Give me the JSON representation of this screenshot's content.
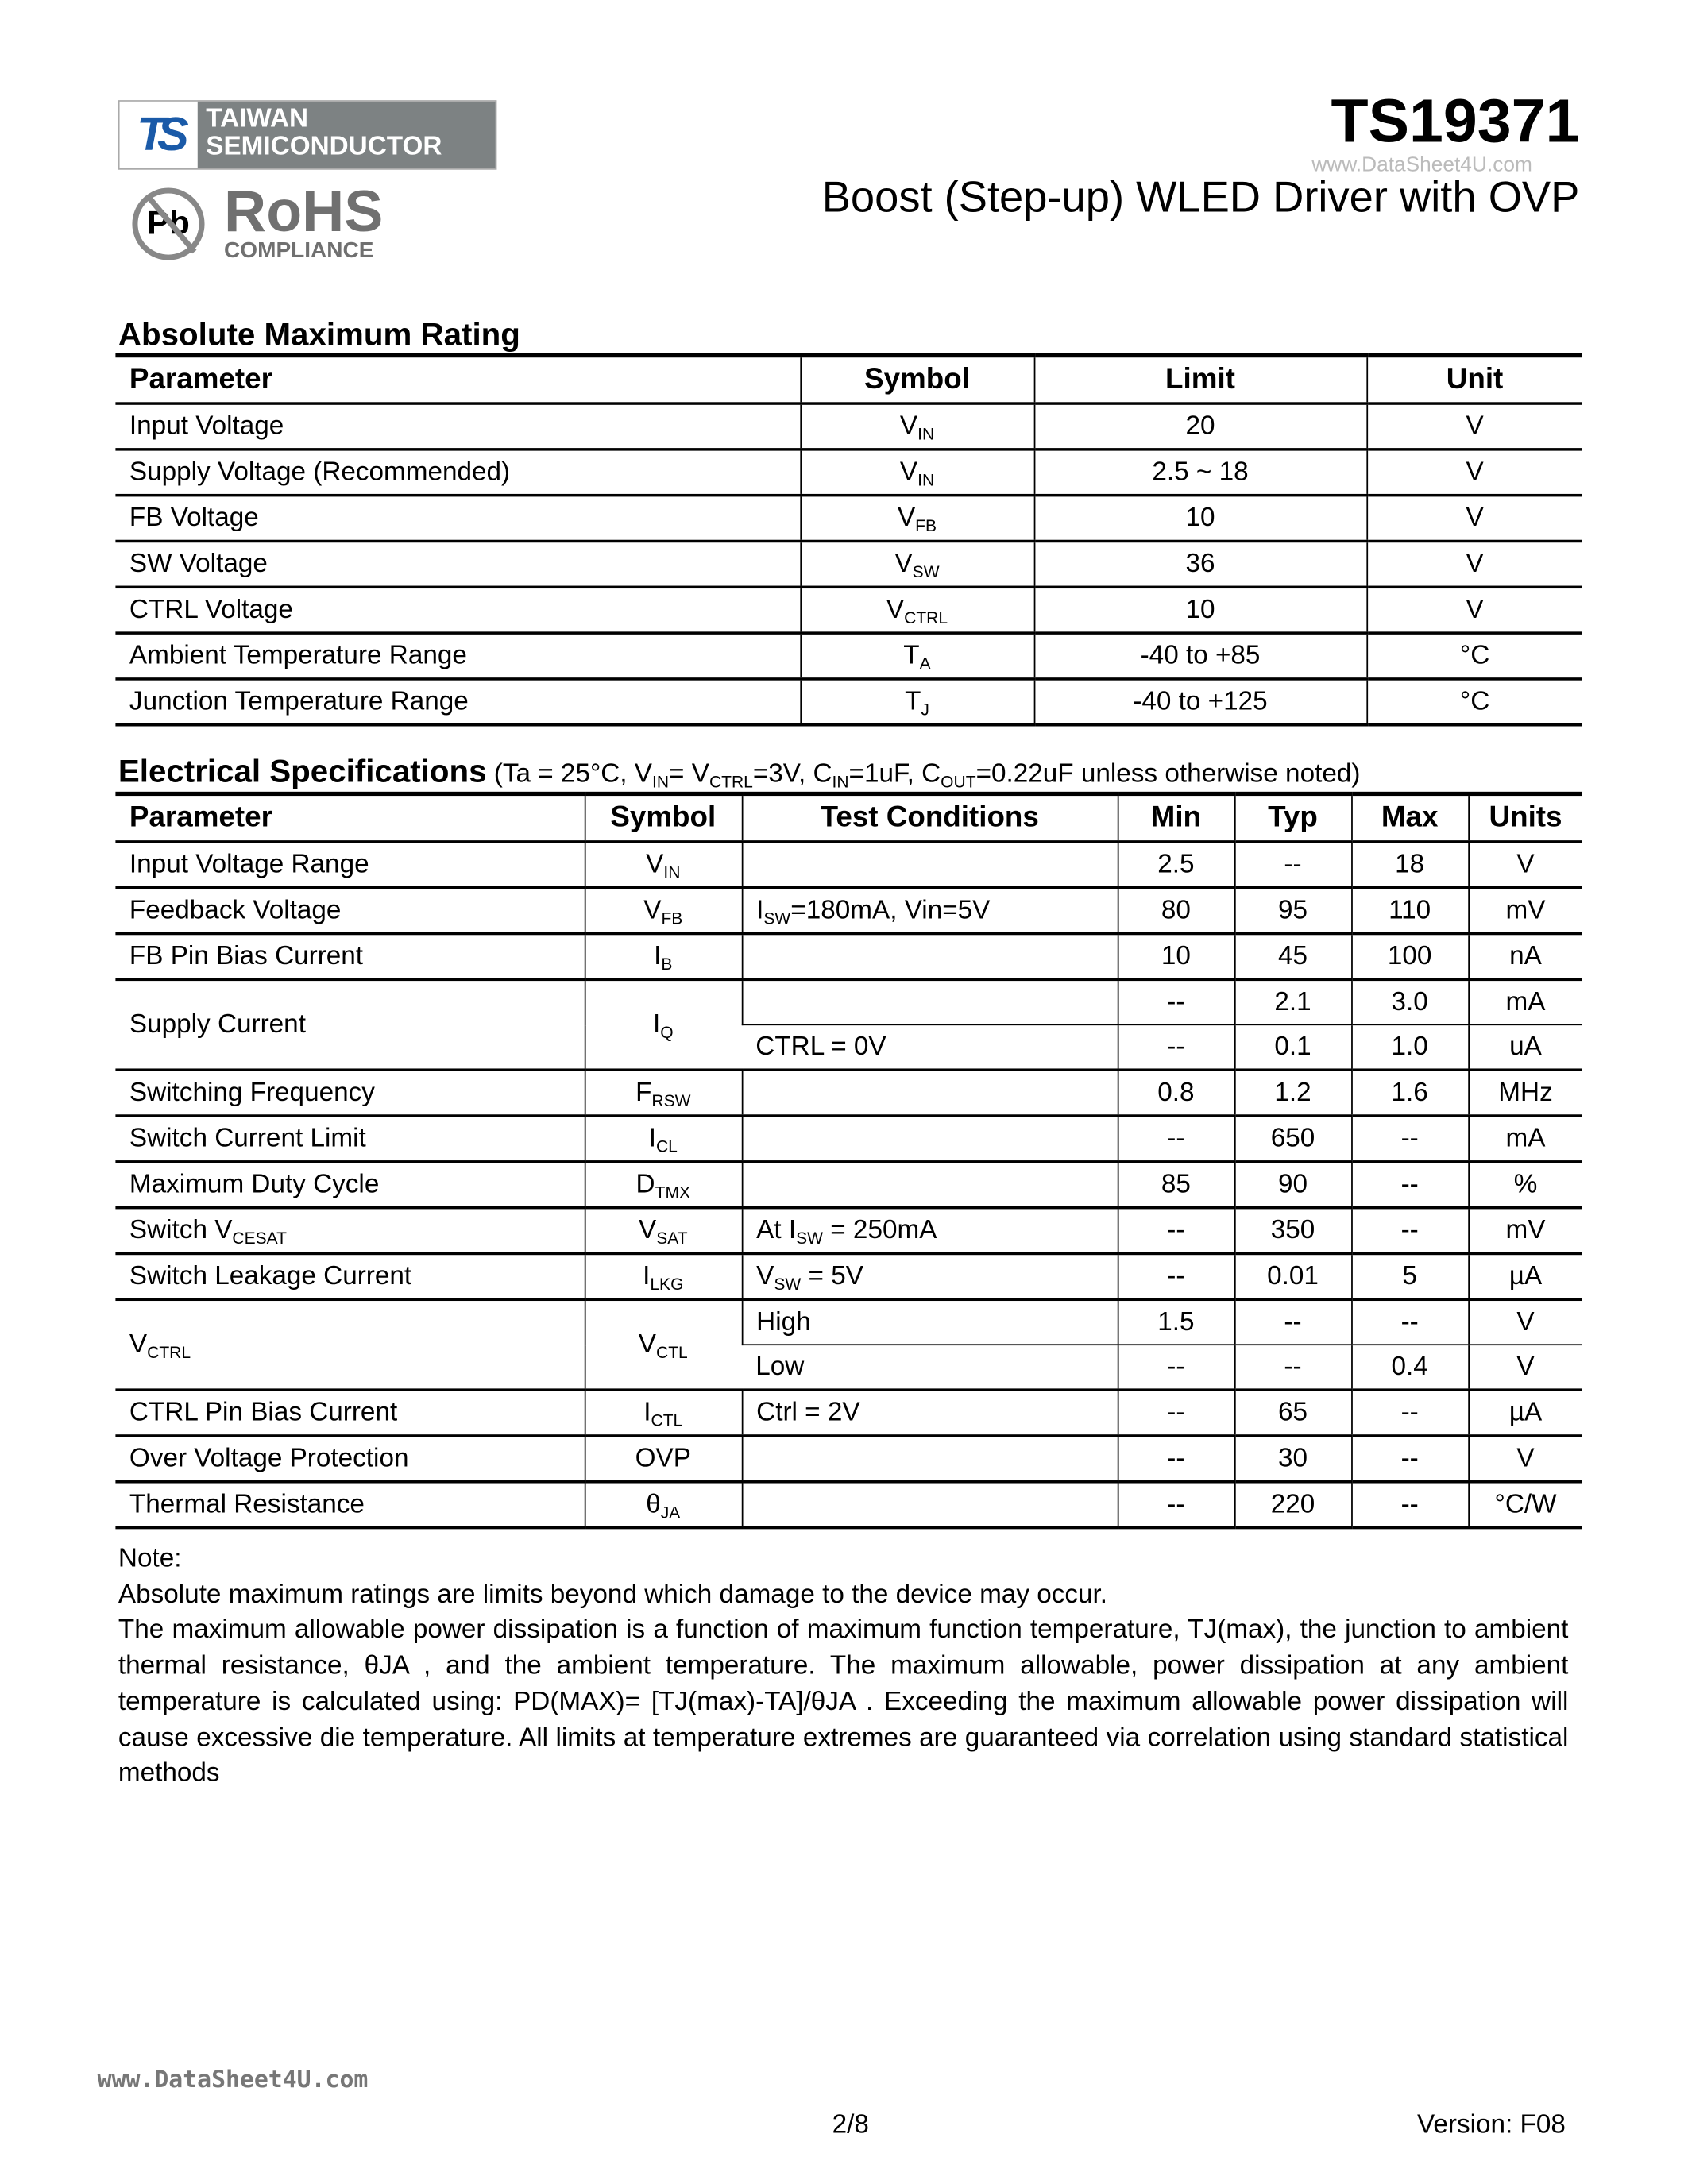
{
  "header": {
    "logo": {
      "mark": "TS",
      "line1": "TAIWAN",
      "line2": "SEMICONDUCTOR"
    },
    "rohs": {
      "pb": "Pb",
      "title": "RoHS",
      "subtitle": "COMPLIANCE"
    },
    "part_number": "TS19371",
    "watermark": "www.DataSheet4U.com",
    "subtitle": "Boost (Step-up) WLED Driver with OVP"
  },
  "abs_max": {
    "title": "Absolute Maximum Rating",
    "columns": [
      "Parameter",
      "Symbol",
      "Limit",
      "Unit"
    ],
    "rows": [
      {
        "param": [
          "Input Voltage"
        ],
        "symbol": [
          "V",
          {
            "sub": "IN"
          }
        ],
        "limit": "20",
        "unit": "V"
      },
      {
        "param": [
          "Supply Voltage (Recommended)"
        ],
        "symbol": [
          "V",
          {
            "sub": "IN"
          }
        ],
        "limit": "2.5 ~ 18",
        "unit": "V"
      },
      {
        "param": [
          "FB Voltage"
        ],
        "symbol": [
          "V",
          {
            "sub": "FB"
          }
        ],
        "limit": "10",
        "unit": "V"
      },
      {
        "param": [
          "SW Voltage"
        ],
        "symbol": [
          "V",
          {
            "sub": "SW"
          }
        ],
        "limit": "36",
        "unit": "V"
      },
      {
        "param": [
          "CTRL Voltage"
        ],
        "symbol": [
          "V",
          {
            "sub": "CTRL"
          }
        ],
        "limit": "10",
        "unit": "V"
      },
      {
        "param": [
          "Ambient Temperature Range"
        ],
        "symbol": [
          "T",
          {
            "sub": "A"
          }
        ],
        "limit": "-40 to +85",
        "unit": "°C"
      },
      {
        "param": [
          "Junction Temperature Range"
        ],
        "symbol": [
          "T",
          {
            "sub": "J"
          }
        ],
        "limit": "-40 to +125",
        "unit": "°C"
      }
    ]
  },
  "elec": {
    "title": "Electrical Specifications",
    "conditions": [
      "(Ta = 25°C, V",
      {
        "sub": "IN"
      },
      "= V",
      {
        "sub": "CTRL"
      },
      "=3V, C",
      {
        "sub": "IN"
      },
      "=1uF, C",
      {
        "sub": "OUT"
      },
      "=0.22uF unless otherwise noted)"
    ],
    "columns": [
      "Parameter",
      "Symbol",
      "Test Conditions",
      "Min",
      "Typ",
      "Max",
      "Units"
    ],
    "rows": [
      {
        "param": [
          "Input Voltage Range"
        ],
        "symbol": [
          "V",
          {
            "sub": "IN"
          }
        ],
        "sub_rows": [
          {
            "cond": [
              ""
            ],
            "min": "2.5",
            "typ": "--",
            "max": "18",
            "unit": "V"
          }
        ]
      },
      {
        "param": [
          "Feedback Voltage"
        ],
        "symbol": [
          "V",
          {
            "sub": "FB"
          }
        ],
        "sub_rows": [
          {
            "cond": [
              "I",
              {
                "sub": "SW"
              },
              "=180mA, Vin=5V"
            ],
            "min": "80",
            "typ": "95",
            "max": "110",
            "unit": "mV"
          }
        ]
      },
      {
        "param": [
          "FB Pin Bias Current"
        ],
        "symbol": [
          "I",
          {
            "sub": "B"
          }
        ],
        "sub_rows": [
          {
            "cond": [
              ""
            ],
            "min": "10",
            "typ": "45",
            "max": "100",
            "unit": "nA"
          }
        ]
      },
      {
        "param": [
          "Supply Current"
        ],
        "symbol": [
          "I",
          {
            "sub": "Q"
          }
        ],
        "sub_rows": [
          {
            "cond": [
              ""
            ],
            "min": "--",
            "typ": "2.1",
            "max": "3.0",
            "unit": "mA"
          },
          {
            "cond": [
              "CTRL = 0V"
            ],
            "min": "--",
            "typ": "0.1",
            "max": "1.0",
            "unit": "uA"
          }
        ]
      },
      {
        "param": [
          "Switching Frequency"
        ],
        "symbol": [
          "F",
          {
            "sub": "RSW"
          }
        ],
        "sub_rows": [
          {
            "cond": [
              ""
            ],
            "min": "0.8",
            "typ": "1.2",
            "max": "1.6",
            "unit": "MHz"
          }
        ]
      },
      {
        "param": [
          "Switch Current Limit"
        ],
        "symbol": [
          "I",
          {
            "sub": "CL"
          }
        ],
        "sub_rows": [
          {
            "cond": [
              ""
            ],
            "min": "--",
            "typ": "650",
            "max": "--",
            "unit": "mA"
          }
        ]
      },
      {
        "param": [
          "Maximum Duty Cycle"
        ],
        "symbol": [
          "D",
          {
            "sub": "TMX"
          }
        ],
        "sub_rows": [
          {
            "cond": [
              ""
            ],
            "min": "85",
            "typ": "90",
            "max": "--",
            "unit": "%"
          }
        ]
      },
      {
        "param": [
          "Switch V",
          {
            "sub": "CESAT"
          }
        ],
        "symbol": [
          "V",
          {
            "sub": "SAT"
          }
        ],
        "sub_rows": [
          {
            "cond": [
              "At I",
              {
                "sub": "SW"
              },
              " =  250mA"
            ],
            "min": "--",
            "typ": "350",
            "max": "--",
            "unit": "mV"
          }
        ]
      },
      {
        "param": [
          "Switch Leakage Current"
        ],
        "symbol": [
          "I",
          {
            "sub": "LKG"
          }
        ],
        "sub_rows": [
          {
            "cond": [
              "V",
              {
                "sub": "SW"
              },
              " = 5V"
            ],
            "min": "--",
            "typ": "0.01",
            "max": "5",
            "unit": "µA"
          }
        ]
      },
      {
        "param": [
          "V",
          {
            "sub": "CTRL"
          }
        ],
        "symbol": [
          "V",
          {
            "sub": "CTL"
          }
        ],
        "sub_rows": [
          {
            "cond": [
              "High"
            ],
            "min": "1.5",
            "typ": "--",
            "max": "--",
            "unit": "V"
          },
          {
            "cond": [
              "Low"
            ],
            "min": "--",
            "typ": "--",
            "max": "0.4",
            "unit": "V"
          }
        ]
      },
      {
        "param": [
          "CTRL Pin Bias Current"
        ],
        "symbol": [
          "I",
          {
            "sub": "CTL"
          }
        ],
        "sub_rows": [
          {
            "cond": [
              "Ctrl = 2V"
            ],
            "min": "--",
            "typ": "65",
            "max": "--",
            "unit": "µA"
          }
        ]
      },
      {
        "param": [
          "Over Voltage Protection"
        ],
        "symbol": [
          "OVP"
        ],
        "sub_rows": [
          {
            "cond": [
              ""
            ],
            "min": "--",
            "typ": "30",
            "max": "--",
            "unit": "V"
          }
        ]
      },
      {
        "param": [
          "Thermal Resistance"
        ],
        "symbol": [
          "θ",
          {
            "sub": "JA"
          }
        ],
        "sub_rows": [
          {
            "cond": [
              ""
            ],
            "min": "--",
            "typ": "220",
            "max": "--",
            "unit": "°C/W"
          }
        ]
      }
    ]
  },
  "notes": {
    "label": "Note:",
    "line1": "Absolute maximum ratings are limits beyond which damage to the device may occur.",
    "para": "The maximum allowable power dissipation is a function of maximum function temperature, TJ(max), the junction to ambient thermal resistance, θJA , and the ambient temperature. The maximum allowable, power dissipation at any ambient temperature is calculated using: PD(MAX)= [TJ(max)-TA]/θJA . Exceeding the maximum allowable power dissipation will cause excessive die temperature. All limits at temperature extremes are guaranteed via correlation using standard statistical methods"
  },
  "footer": {
    "watermark": "www.DataSheet4U.com",
    "page": "2/8",
    "version": "Version: F08"
  }
}
